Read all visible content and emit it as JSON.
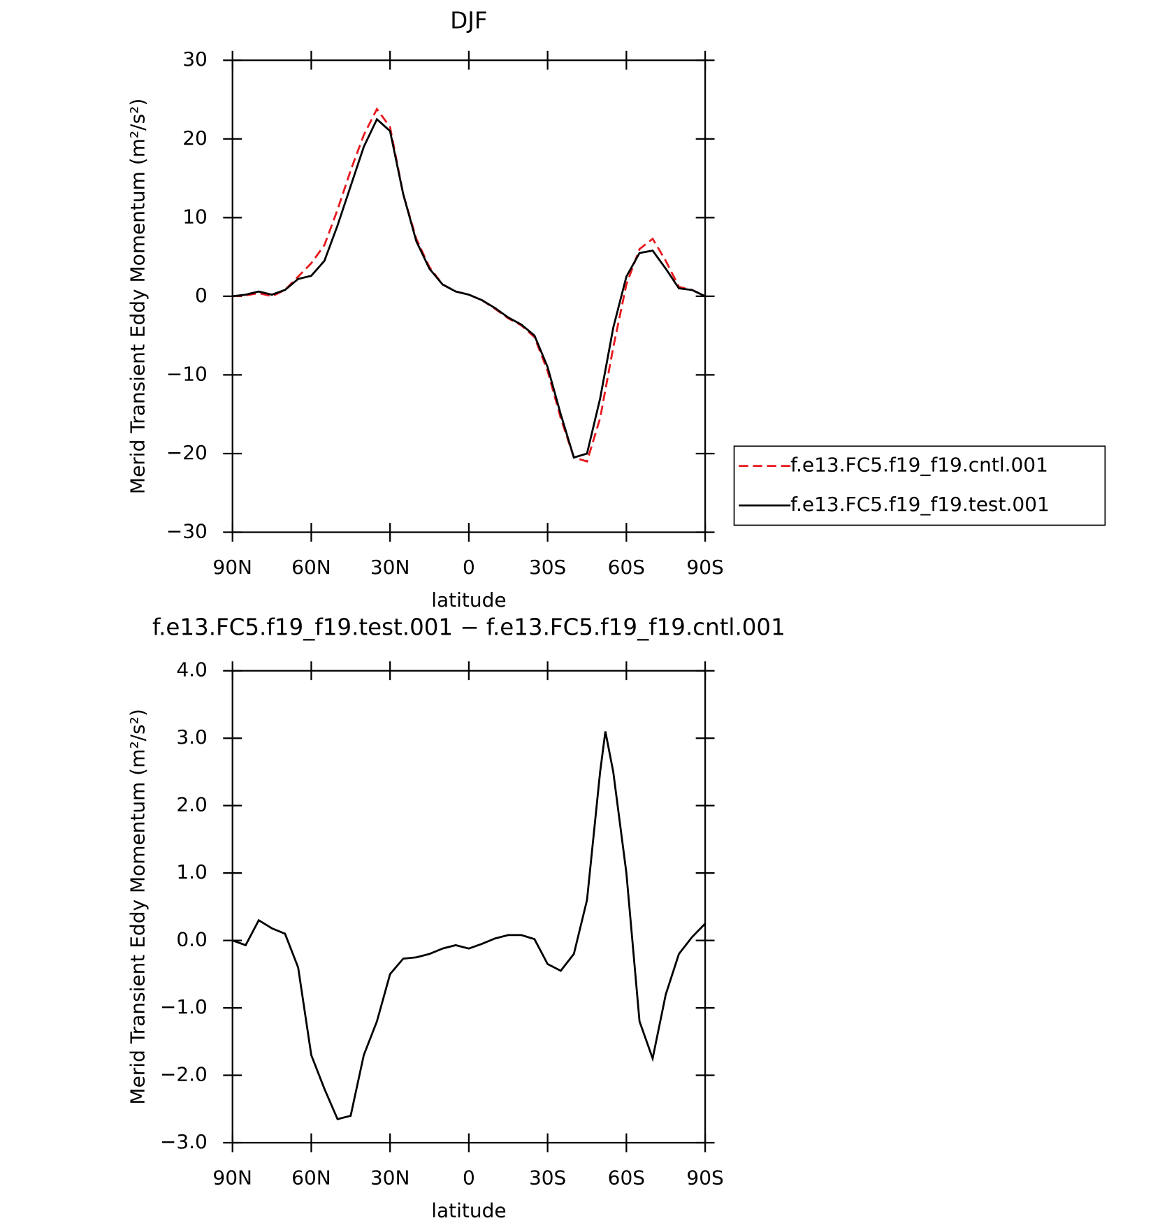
{
  "chart_data": [
    {
      "type": "line",
      "title": "DJF",
      "xlabel": "latitude",
      "ylabel": "Merid Transient Eddy Momentum (m²/s²)",
      "x": [
        90,
        85,
        80,
        75,
        70,
        65,
        60,
        55,
        50,
        45,
        40,
        35,
        30,
        25,
        20,
        15,
        10,
        5,
        0,
        -5,
        -10,
        -15,
        -20,
        -25,
        -30,
        -35,
        -40,
        -45,
        -50,
        -55,
        -60,
        -65,
        -70,
        -75,
        -80,
        -85,
        -90
      ],
      "series": [
        {
          "name": "f.e13.FC5.f19_f19.cntl.001",
          "color": "#e8191e",
          "linestyle": "dashed",
          "values": [
            0,
            0.1,
            0.4,
            0,
            0.8,
            2.5,
            4.2,
            6.5,
            11,
            16,
            20.5,
            23.8,
            21.5,
            13,
            7.3,
            3.7,
            1.5,
            0.6,
            0.2,
            -0.5,
            -1.6,
            -2.8,
            -3.7,
            -5.2,
            -9.5,
            -15.5,
            -20.5,
            -21,
            -15.5,
            -6.5,
            1.5,
            6,
            7.3,
            4.5,
            1.2,
            0.8,
            0
          ]
        },
        {
          "name": "f.e13.FC5.f19_f19.test.001",
          "color": "#000000",
          "linestyle": "solid",
          "values": [
            0,
            0.2,
            0.6,
            0.2,
            0.8,
            2.2,
            2.6,
            4.5,
            9,
            14,
            19,
            22.5,
            21,
            13,
            7,
            3.5,
            1.5,
            0.6,
            0.2,
            -0.5,
            -1.5,
            -2.7,
            -3.6,
            -5,
            -9,
            -15,
            -20.5,
            -20,
            -13,
            -4,
            2.5,
            5.5,
            5.8,
            3.5,
            1,
            0.8,
            0
          ]
        }
      ],
      "xlim": [
        90,
        -90
      ],
      "xticks": [
        {
          "value": 90,
          "label": "90N"
        },
        {
          "value": 60,
          "label": "60N"
        },
        {
          "value": 30,
          "label": "30N"
        },
        0,
        {
          "value": -30,
          "label": "30S"
        },
        {
          "value": -60,
          "label": "60S"
        },
        {
          "value": -90,
          "label": "90S"
        }
      ],
      "ylim": [
        -30,
        30
      ],
      "yticks": [
        {
          "value": -30,
          "label": "−30"
        },
        {
          "value": -20,
          "label": "−20"
        },
        {
          "value": -10,
          "label": "−10"
        },
        0,
        10,
        20,
        30
      ],
      "legend": "right"
    },
    {
      "type": "line",
      "title": "f.e13.FC5.f19_f19.test.001 − f.e13.FC5.f19_f19.cntl.001",
      "xlabel": "latitude",
      "ylabel": "Merid Transient Eddy Momentum (m²/s²)",
      "x": [
        90,
        85,
        80,
        75,
        70,
        65,
        60,
        55,
        50,
        45,
        40,
        35,
        30,
        25,
        20,
        15,
        10,
        5,
        0,
        -5,
        -10,
        -15,
        -20,
        -25,
        -30,
        -35,
        -40,
        -45,
        -50,
        -52,
        -55,
        -60,
        -65,
        -70,
        -75,
        -80,
        -85,
        -90
      ],
      "series": [
        {
          "color": "#000000",
          "linestyle": "solid",
          "values": [
            0,
            -0.07,
            0.3,
            0.18,
            0.1,
            -0.4,
            -1.7,
            -2.2,
            -2.65,
            -2.6,
            -1.7,
            -1.2,
            -0.5,
            -0.27,
            -0.25,
            -0.2,
            -0.12,
            -0.07,
            -0.12,
            -0.05,
            0.03,
            0.08,
            0.08,
            0.02,
            -0.35,
            -0.45,
            -0.2,
            0.6,
            2.5,
            3.1,
            2.5,
            1.0,
            -1.2,
            -1.75,
            -0.8,
            -0.2,
            0.05,
            0.25
          ]
        }
      ],
      "xlim": [
        90,
        -90
      ],
      "xticks": [
        {
          "value": 90,
          "label": "90N"
        },
        {
          "value": 60,
          "label": "60N"
        },
        {
          "value": 30,
          "label": "30N"
        },
        0,
        {
          "value": -30,
          "label": "30S"
        },
        {
          "value": -60,
          "label": "60S"
        },
        {
          "value": -90,
          "label": "90S"
        }
      ],
      "ylim": [
        -3,
        4
      ],
      "yticks": [
        {
          "value": -3,
          "label": "−3.0"
        },
        {
          "value": -2,
          "label": "−2.0"
        },
        {
          "value": -1,
          "label": "−1.0"
        },
        {
          "value": 0,
          "label": "0.0"
        },
        {
          "value": 1,
          "label": "1.0"
        },
        {
          "value": 2,
          "label": "2.0"
        },
        {
          "value": 3,
          "label": "3.0"
        },
        {
          "value": 4,
          "label": "4.0"
        }
      ]
    }
  ]
}
